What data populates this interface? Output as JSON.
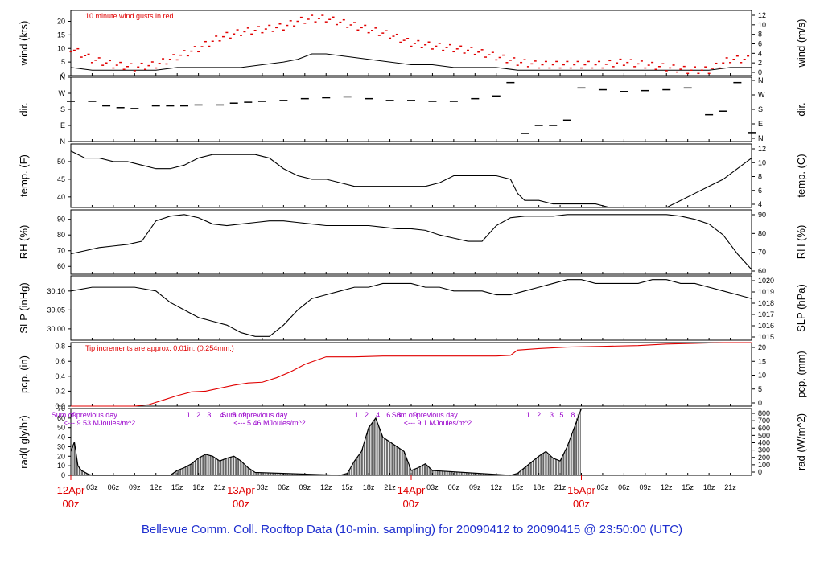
{
  "title": "Bellevue Comm. Coll. Rooftop Data (10-min. sampling) for 20090412  to  20090415 @ 23:50:00  (UTC)",
  "colors": {
    "line": "#000000",
    "gust": "#e00000",
    "precip": "#e00000",
    "note_red": "#e00000",
    "note_purple": "#9900cc",
    "title_blue": "#1f2fcf",
    "day_red": "#e00000"
  },
  "x_axis": {
    "hour_ticks": [
      "03z",
      "06z",
      "09z",
      "12z",
      "15z",
      "18z",
      "21z"
    ],
    "days": [
      {
        "date": "12Apr",
        "hour": "00z"
      },
      {
        "date": "13Apr",
        "hour": "00z"
      },
      {
        "date": "14Apr",
        "hour": "00z"
      },
      {
        "date": "15Apr",
        "hour": "00z"
      }
    ],
    "range_hours": [
      0,
      96
    ]
  },
  "chart_data": [
    {
      "type": "line",
      "ylabel": "wind (kts)",
      "ylabel_right": "wind (m/s)",
      "note": "10  minute wind gusts in red",
      "yticks_left": [
        "0",
        "5",
        "10",
        "15",
        "20"
      ],
      "yticks_right": [
        "0",
        "2",
        "4",
        "6",
        "8",
        "10",
        "12"
      ],
      "ylim": [
        0,
        24
      ],
      "series": [
        {
          "role": "sustained",
          "x": [
            0,
            3,
            6,
            9,
            12,
            15,
            18,
            21,
            24,
            27,
            30,
            32,
            34,
            36,
            39,
            42,
            45,
            48,
            51,
            54,
            57,
            60,
            63,
            66,
            69,
            72,
            75,
            78,
            81,
            84,
            87,
            90,
            93,
            96
          ],
          "values": [
            3,
            2,
            2,
            2,
            2,
            3,
            3,
            3,
            3,
            4,
            5,
            6,
            8,
            8,
            7,
            6,
            5,
            4,
            4,
            3,
            3,
            3,
            2,
            2,
            2,
            2,
            2,
            2,
            2,
            2,
            2,
            2,
            3,
            3
          ]
        },
        {
          "role": "gust",
          "x": [
            0,
            3,
            6,
            9,
            12,
            15,
            18,
            21,
            24,
            27,
            30,
            32,
            34,
            36,
            39,
            42,
            45,
            48,
            51,
            54,
            57,
            60,
            63,
            66,
            69,
            72,
            75,
            78,
            81,
            84,
            87,
            90,
            93,
            96
          ],
          "values": [
            10,
            6,
            4,
            3,
            4,
            7,
            10,
            14,
            16,
            17,
            18,
            20,
            21,
            21,
            19,
            17,
            15,
            12,
            11,
            10,
            9,
            7,
            5,
            4,
            4,
            4,
            4,
            5,
            4,
            3,
            2,
            2,
            6,
            6
          ]
        }
      ]
    },
    {
      "type": "scatter",
      "ylabel": "dir.",
      "ylabel_right": "dir.",
      "yticks_left": [
        "N",
        "W",
        "S",
        "E",
        "N"
      ],
      "yticks_right": [
        "N",
        "W",
        "S",
        "E",
        "N"
      ],
      "ylim": [
        0,
        360
      ],
      "series": [
        {
          "x": [
            0,
            3,
            5,
            7,
            9,
            12,
            14,
            16,
            18,
            21,
            23,
            25,
            27,
            30,
            33,
            36,
            39,
            42,
            45,
            48,
            51,
            54,
            57,
            60,
            62,
            64,
            66,
            68,
            70,
            72,
            75,
            78,
            81,
            84,
            87,
            90,
            92,
            94,
            96
          ],
          "values": [
            225,
            225,
            200,
            190,
            185,
            200,
            200,
            200,
            205,
            205,
            215,
            220,
            225,
            230,
            240,
            245,
            250,
            240,
            230,
            230,
            225,
            225,
            240,
            255,
            330,
            45,
            90,
            90,
            120,
            300,
            290,
            280,
            285,
            290,
            300,
            150,
            170,
            330,
            50
          ]
        }
      ]
    },
    {
      "type": "line",
      "ylabel": "temp. (F)",
      "ylabel_right": "temp. (C)",
      "yticks_left": [
        "40",
        "45",
        "50"
      ],
      "yticks_right": [
        "4",
        "6",
        "8",
        "10",
        "12"
      ],
      "ylim": [
        37,
        55
      ],
      "series": [
        {
          "x": [
            0,
            2,
            4,
            6,
            8,
            10,
            12,
            14,
            16,
            18,
            20,
            22,
            24,
            26,
            28,
            30,
            32,
            34,
            36,
            38,
            40,
            42,
            44,
            46,
            48,
            50,
            52,
            54,
            56,
            58,
            60,
            62,
            63,
            64,
            66,
            68,
            70,
            72,
            74,
            76,
            78,
            80,
            82,
            84,
            86,
            88,
            90,
            92,
            94,
            96
          ],
          "values": [
            53,
            51,
            51,
            50,
            50,
            49,
            48,
            48,
            49,
            51,
            52,
            52,
            52,
            52,
            51,
            48,
            46,
            45,
            45,
            44,
            43,
            43,
            43,
            43,
            43,
            43,
            44,
            46,
            46,
            46,
            46,
            45,
            41,
            39,
            39,
            38,
            38,
            38,
            38,
            37,
            37,
            37,
            37,
            37,
            39,
            41,
            43,
            45,
            48,
            51
          ]
        }
      ]
    },
    {
      "type": "line",
      "ylabel": "RH (%)",
      "ylabel_right": "RH (%)",
      "yticks_left": [
        "60",
        "70",
        "80",
        "90"
      ],
      "yticks_right": [
        "60",
        "70",
        "80",
        "90"
      ],
      "ylim": [
        55,
        96
      ],
      "series": [
        {
          "x": [
            0,
            2,
            4,
            6,
            8,
            10,
            12,
            14,
            16,
            18,
            20,
            22,
            24,
            26,
            28,
            30,
            32,
            34,
            36,
            38,
            40,
            42,
            44,
            46,
            48,
            50,
            52,
            54,
            56,
            58,
            60,
            62,
            64,
            66,
            68,
            70,
            72,
            74,
            76,
            78,
            80,
            82,
            84,
            86,
            88,
            90,
            92,
            94,
            96
          ],
          "values": [
            68,
            70,
            72,
            73,
            74,
            76,
            89,
            92,
            93,
            91,
            87,
            86,
            87,
            88,
            89,
            89,
            88,
            87,
            86,
            86,
            86,
            86,
            85,
            84,
            84,
            83,
            80,
            78,
            76,
            76,
            86,
            91,
            92,
            92,
            92,
            93,
            93,
            93,
            93,
            93,
            93,
            93,
            93,
            92,
            90,
            87,
            80,
            68,
            58
          ]
        }
      ]
    },
    {
      "type": "line",
      "ylabel": "SLP (inHg)",
      "ylabel_right": "SLP (hPa)",
      "yticks_left": [
        "30.00",
        "30.05",
        "30.10"
      ],
      "yticks_right": [
        "1015",
        "1016",
        "1017",
        "1018",
        "1019",
        "1020"
      ],
      "ylim": [
        29.97,
        30.14
      ],
      "series": [
        {
          "x": [
            0,
            3,
            6,
            9,
            12,
            14,
            16,
            18,
            20,
            22,
            24,
            26,
            28,
            30,
            32,
            34,
            36,
            38,
            40,
            42,
            44,
            46,
            48,
            50,
            52,
            54,
            56,
            58,
            60,
            62,
            64,
            66,
            68,
            70,
            72,
            74,
            76,
            78,
            80,
            82,
            84,
            86,
            88,
            90,
            92,
            94,
            96
          ],
          "values": [
            30.1,
            30.11,
            30.11,
            30.11,
            30.1,
            30.07,
            30.05,
            30.03,
            30.02,
            30.01,
            29.99,
            29.98,
            29.98,
            30.01,
            30.05,
            30.08,
            30.09,
            30.1,
            30.11,
            30.11,
            30.12,
            30.12,
            30.12,
            30.11,
            30.11,
            30.1,
            30.1,
            30.1,
            30.09,
            30.09,
            30.1,
            30.11,
            30.12,
            30.13,
            30.13,
            30.12,
            30.12,
            30.12,
            30.12,
            30.13,
            30.13,
            30.12,
            30.12,
            30.11,
            30.1,
            30.09,
            30.08
          ]
        }
      ]
    },
    {
      "type": "area",
      "ylabel": "pcp. (in)",
      "ylabel_right": "pcp. (mm)",
      "note": "Tip increments are approx. 0.01in. (0.254mm.)",
      "yticks_left": [
        "0.0",
        "0.2",
        "0.4",
        "0.6",
        "0.8"
      ],
      "yticks_right": [
        "0",
        "5",
        "10",
        "15",
        "20"
      ],
      "ylim": [
        0,
        0.85
      ],
      "series": [
        {
          "x": [
            0,
            9,
            11,
            13,
            15,
            17,
            19,
            21,
            23,
            25,
            27,
            29,
            31,
            33,
            36,
            40,
            44,
            48,
            52,
            56,
            60,
            62,
            63,
            66,
            70,
            75,
            80,
            84,
            88,
            92,
            96
          ],
          "values": [
            0,
            0,
            0.02,
            0.08,
            0.14,
            0.19,
            0.2,
            0.24,
            0.28,
            0.31,
            0.32,
            0.38,
            0.46,
            0.56,
            0.66,
            0.66,
            0.67,
            0.67,
            0.67,
            0.67,
            0.67,
            0.68,
            0.75,
            0.77,
            0.79,
            0.8,
            0.81,
            0.83,
            0.84,
            0.85,
            0.85
          ]
        }
      ]
    },
    {
      "type": "area",
      "ylabel": "rad(Lgly/hr)",
      "ylabel_right": "rad (W/m^2)",
      "yticks_left": [
        "0",
        "10",
        "20",
        "30",
        "40",
        "50",
        "60",
        "70"
      ],
      "yticks_right": [
        "0",
        "100",
        "200",
        "300",
        "400",
        "500",
        "600",
        "700",
        "800"
      ],
      "ylim": [
        0,
        70
      ],
      "notes": [
        {
          "text": "Sum of previous day",
          "hour": 12
        },
        {
          "text": "<--- 9.53 MJoules/m^2",
          "hour": 12
        },
        {
          "text": "Sum of previous day",
          "hour": 36
        },
        {
          "text": "<--- 5.46 MJoules/m^2",
          "hour": 36
        },
        {
          "text": "Sum of previous day",
          "hour": 60
        },
        {
          "text": "<--- 9.1 MJoules/m^2",
          "hour": 60
        }
      ],
      "hour_markers": [
        {
          "label": "9",
          "hour": 0.5
        },
        {
          "label": "1",
          "hour": 16.6
        },
        {
          "label": "2",
          "hour": 18
        },
        {
          "label": "3",
          "hour": 19.5
        },
        {
          "label": "4",
          "hour": 21.3
        },
        {
          "label": "5",
          "hour": 23
        },
        {
          "label": "9",
          "hour": 24.5
        },
        {
          "label": "1",
          "hour": 40.3
        },
        {
          "label": "2",
          "hour": 41.7
        },
        {
          "label": "4",
          "hour": 43.3
        },
        {
          "label": "6",
          "hour": 44.8
        },
        {
          "label": "8",
          "hour": 46.3
        },
        {
          "label": "9",
          "hour": 48.6
        },
        {
          "label": "1",
          "hour": 64.5
        },
        {
          "label": "2",
          "hour": 66
        },
        {
          "label": "3",
          "hour": 67.8
        },
        {
          "label": "5",
          "hour": 69.2
        },
        {
          "label": "8",
          "hour": 70.8
        }
      ],
      "series": [
        {
          "x": [
            0,
            0.5,
            1,
            1.5,
            2,
            2.5,
            3,
            14,
            15,
            16,
            17,
            18,
            19,
            20,
            21,
            22,
            23,
            24,
            25,
            26,
            38,
            39,
            40,
            41,
            42,
            43,
            44,
            45,
            46,
            47,
            48,
            49,
            50,
            51,
            62,
            63,
            64,
            65,
            66,
            67,
            68,
            69,
            70,
            71,
            72
          ],
          "values": [
            25,
            35,
            10,
            5,
            3,
            1,
            0,
            0,
            5,
            8,
            12,
            18,
            22,
            20,
            15,
            18,
            20,
            15,
            8,
            3,
            0,
            2,
            15,
            25,
            50,
            60,
            40,
            35,
            30,
            25,
            5,
            8,
            12,
            5,
            0,
            2,
            8,
            14,
            20,
            25,
            18,
            15,
            30,
            50,
            78
          ]
        }
      ]
    }
  ]
}
